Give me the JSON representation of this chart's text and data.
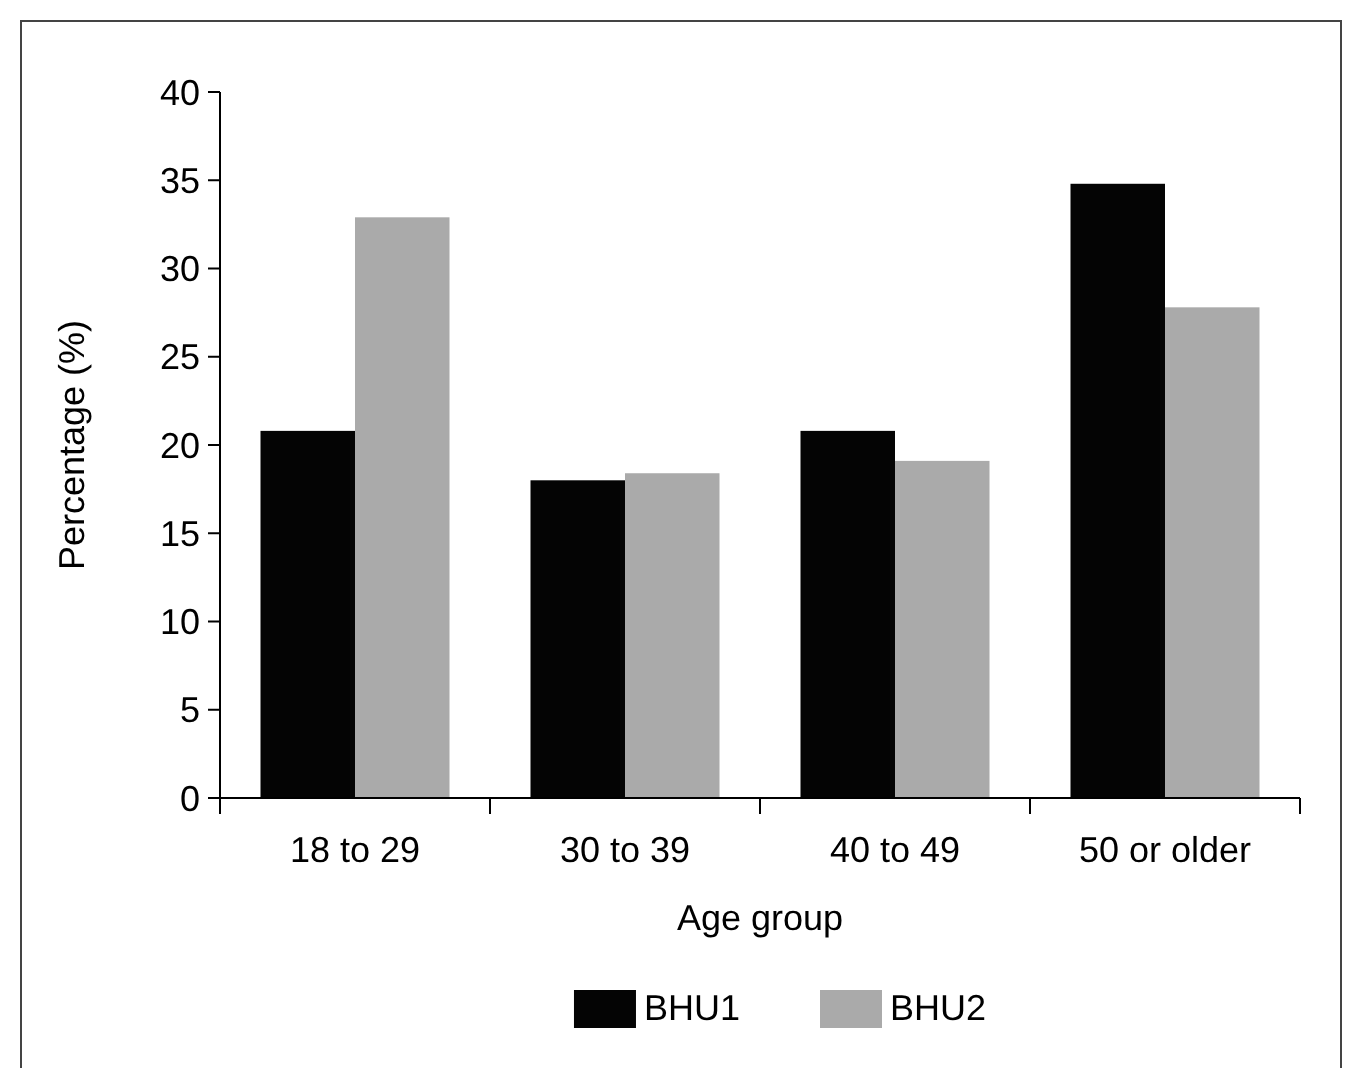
{
  "chart_data": {
    "type": "bar",
    "xlabel": "Age group",
    "ylabel": "Percentage (%)",
    "categories": [
      "18 to 29",
      "30 to 39",
      "40 to 49",
      "50 or older"
    ],
    "series": [
      {
        "name": "BHU1",
        "color": "#040404",
        "values": [
          20.8,
          18.0,
          20.8,
          34.8
        ]
      },
      {
        "name": "BHU2",
        "color": "#aaaaaa",
        "values": [
          32.9,
          18.4,
          19.1,
          27.8
        ]
      }
    ],
    "ylim": [
      0,
      40
    ],
    "yticks": [
      0,
      5,
      10,
      15,
      20,
      25,
      30,
      35,
      40
    ],
    "grid": false,
    "legend": "bottom"
  }
}
